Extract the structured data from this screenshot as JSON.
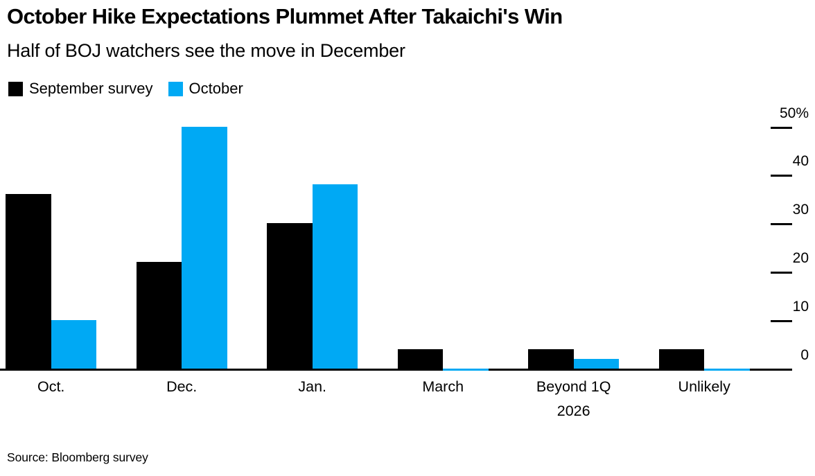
{
  "chart_data": {
    "type": "bar",
    "title": "October Hike Expectations Plummet After Takaichi's Win",
    "subtitle": "Half of BOJ watchers see the move in December",
    "source": "Source: Bloomberg survey",
    "categories": [
      "Oct.",
      "Dec.",
      "Jan.",
      "March",
      "Beyond 1Q 2026",
      "Unlikely"
    ],
    "series": [
      {
        "name": "September survey",
        "color": "#000000",
        "values": [
          36,
          22,
          30,
          4,
          4,
          4
        ]
      },
      {
        "name": "October",
        "color": "#00A9F4",
        "values": [
          10,
          50,
          38,
          0,
          2,
          0
        ]
      }
    ],
    "ylim": [
      0,
      50
    ],
    "y_ticks": [
      0,
      10,
      20,
      30,
      40,
      50
    ],
    "y_tick_labels": [
      "0",
      "10",
      "20",
      "30",
      "40",
      "50%"
    ],
    "axis_side": "right",
    "legend_position": "top-left",
    "grid": false,
    "background_color": "#ffffff",
    "text_color": "#000000"
  }
}
